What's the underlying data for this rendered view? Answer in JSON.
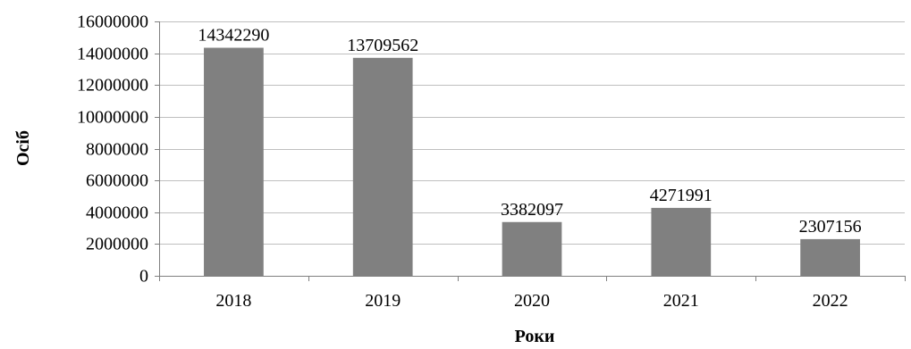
{
  "chart_data": {
    "type": "bar",
    "categories": [
      "2018",
      "2019",
      "2020",
      "2021",
      "2022"
    ],
    "values": [
      14342290,
      13709562,
      3382097,
      4271991,
      2307156
    ],
    "data_labels": [
      "14342290",
      "13709562",
      "3382097",
      "4271991",
      "2307156"
    ],
    "title": "",
    "xlabel": "Роки",
    "ylabel": "Осіб",
    "ylim": [
      0,
      16000000
    ],
    "yticks": [
      0,
      2000000,
      4000000,
      6000000,
      8000000,
      10000000,
      12000000,
      14000000,
      16000000
    ],
    "ytick_labels": [
      "0",
      "2000000",
      "4000000",
      "6000000",
      "8000000",
      "10000000",
      "12000000",
      "14000000",
      "16000000"
    ],
    "grid": true,
    "legend": "none",
    "colors": {
      "bar": "#808080",
      "grid": "#bfbfbf",
      "axis": "#808080",
      "text": "#000000"
    }
  }
}
